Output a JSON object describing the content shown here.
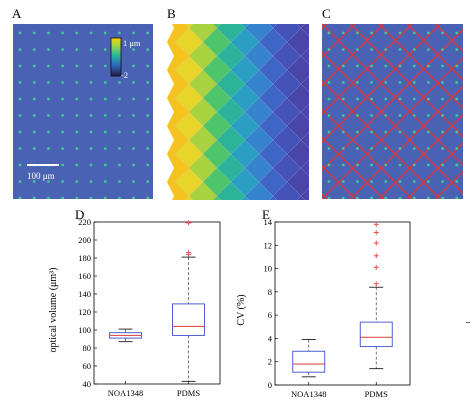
{
  "panels": {
    "a": {
      "label": "A",
      "scalebar_label": "100 μm",
      "colorbar_max": "1 μm",
      "colorbar_min": "-2"
    },
    "b": {
      "label": "B"
    },
    "c": {
      "label": "C"
    },
    "d": {
      "label": "D"
    },
    "e": {
      "label": "E"
    }
  },
  "colors": {
    "image_background": "#4a62b3",
    "dot": "#3fc995",
    "box": "#3b4fd0",
    "median": "#e0534f",
    "whisker": "#555555",
    "outlier": "#e8555a",
    "overlay_line": "#e0343a"
  },
  "chart_data": [
    {
      "type": "box",
      "ylabel": "optical volume (μm³)",
      "categories": [
        "NOA1348",
        "PDMS"
      ],
      "ylim": [
        40,
        220
      ],
      "yticks": [
        40,
        60,
        80,
        100,
        120,
        140,
        160,
        180,
        200,
        220
      ],
      "series": [
        {
          "category": "NOA1348",
          "whisker_low": 87,
          "q1": 91,
          "median": 94,
          "q3": 97,
          "whisker_high": 101,
          "outliers": []
        },
        {
          "category": "PDMS",
          "whisker_low": 43,
          "q1": 94,
          "median": 104,
          "q3": 129,
          "whisker_high": 181,
          "outliers": [
            184,
            186,
            219
          ]
        }
      ]
    },
    {
      "type": "box",
      "ylabel": "CV (%)",
      "categories": [
        "NOA1348",
        "PDMS"
      ],
      "ylim": [
        0,
        14
      ],
      "yticks": [
        0,
        2,
        4,
        6,
        8,
        10,
        12,
        14
      ],
      "series": [
        {
          "category": "NOA1348",
          "whisker_low": 0.7,
          "q1": 1.1,
          "median": 1.8,
          "q3": 2.9,
          "whisker_high": 3.9,
          "outliers": []
        },
        {
          "category": "PDMS",
          "whisker_low": 1.4,
          "q1": 3.3,
          "median": 4.1,
          "q3": 5.4,
          "whisker_high": 8.4,
          "outliers": [
            8.7,
            10.1,
            11.1,
            12.2,
            13.1,
            13.8
          ]
        }
      ]
    }
  ]
}
